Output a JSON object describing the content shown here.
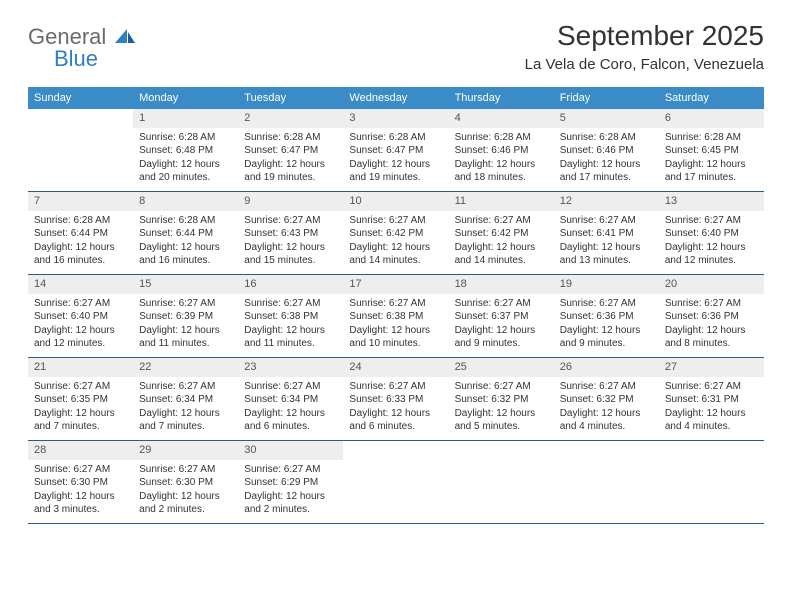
{
  "brand": {
    "word1": "General",
    "word2": "Blue"
  },
  "title": "September 2025",
  "subtitle": "La Vela de Coro, Falcon, Venezuela",
  "colors": {
    "header_bg": "#3b8bc8",
    "row_border": "#2a5b8a",
    "daynum_bg": "#eeeeee",
    "logo_gray": "#6b6b6b",
    "logo_blue": "#2f7fc2"
  },
  "weekdays": [
    "Sunday",
    "Monday",
    "Tuesday",
    "Wednesday",
    "Thursday",
    "Friday",
    "Saturday"
  ],
  "labels": {
    "sunrise": "Sunrise:",
    "sunset": "Sunset:",
    "daylight": "Daylight:"
  },
  "weeks": [
    [
      null,
      {
        "n": "1",
        "sr": "6:28 AM",
        "ss": "6:48 PM",
        "dl": "12 hours and 20 minutes."
      },
      {
        "n": "2",
        "sr": "6:28 AM",
        "ss": "6:47 PM",
        "dl": "12 hours and 19 minutes."
      },
      {
        "n": "3",
        "sr": "6:28 AM",
        "ss": "6:47 PM",
        "dl": "12 hours and 19 minutes."
      },
      {
        "n": "4",
        "sr": "6:28 AM",
        "ss": "6:46 PM",
        "dl": "12 hours and 18 minutes."
      },
      {
        "n": "5",
        "sr": "6:28 AM",
        "ss": "6:46 PM",
        "dl": "12 hours and 17 minutes."
      },
      {
        "n": "6",
        "sr": "6:28 AM",
        "ss": "6:45 PM",
        "dl": "12 hours and 17 minutes."
      }
    ],
    [
      {
        "n": "7",
        "sr": "6:28 AM",
        "ss": "6:44 PM",
        "dl": "12 hours and 16 minutes."
      },
      {
        "n": "8",
        "sr": "6:28 AM",
        "ss": "6:44 PM",
        "dl": "12 hours and 16 minutes."
      },
      {
        "n": "9",
        "sr": "6:27 AM",
        "ss": "6:43 PM",
        "dl": "12 hours and 15 minutes."
      },
      {
        "n": "10",
        "sr": "6:27 AM",
        "ss": "6:42 PM",
        "dl": "12 hours and 14 minutes."
      },
      {
        "n": "11",
        "sr": "6:27 AM",
        "ss": "6:42 PM",
        "dl": "12 hours and 14 minutes."
      },
      {
        "n": "12",
        "sr": "6:27 AM",
        "ss": "6:41 PM",
        "dl": "12 hours and 13 minutes."
      },
      {
        "n": "13",
        "sr": "6:27 AM",
        "ss": "6:40 PM",
        "dl": "12 hours and 12 minutes."
      }
    ],
    [
      {
        "n": "14",
        "sr": "6:27 AM",
        "ss": "6:40 PM",
        "dl": "12 hours and 12 minutes."
      },
      {
        "n": "15",
        "sr": "6:27 AM",
        "ss": "6:39 PM",
        "dl": "12 hours and 11 minutes."
      },
      {
        "n": "16",
        "sr": "6:27 AM",
        "ss": "6:38 PM",
        "dl": "12 hours and 11 minutes."
      },
      {
        "n": "17",
        "sr": "6:27 AM",
        "ss": "6:38 PM",
        "dl": "12 hours and 10 minutes."
      },
      {
        "n": "18",
        "sr": "6:27 AM",
        "ss": "6:37 PM",
        "dl": "12 hours and 9 minutes."
      },
      {
        "n": "19",
        "sr": "6:27 AM",
        "ss": "6:36 PM",
        "dl": "12 hours and 9 minutes."
      },
      {
        "n": "20",
        "sr": "6:27 AM",
        "ss": "6:36 PM",
        "dl": "12 hours and 8 minutes."
      }
    ],
    [
      {
        "n": "21",
        "sr": "6:27 AM",
        "ss": "6:35 PM",
        "dl": "12 hours and 7 minutes."
      },
      {
        "n": "22",
        "sr": "6:27 AM",
        "ss": "6:34 PM",
        "dl": "12 hours and 7 minutes."
      },
      {
        "n": "23",
        "sr": "6:27 AM",
        "ss": "6:34 PM",
        "dl": "12 hours and 6 minutes."
      },
      {
        "n": "24",
        "sr": "6:27 AM",
        "ss": "6:33 PM",
        "dl": "12 hours and 6 minutes."
      },
      {
        "n": "25",
        "sr": "6:27 AM",
        "ss": "6:32 PM",
        "dl": "12 hours and 5 minutes."
      },
      {
        "n": "26",
        "sr": "6:27 AM",
        "ss": "6:32 PM",
        "dl": "12 hours and 4 minutes."
      },
      {
        "n": "27",
        "sr": "6:27 AM",
        "ss": "6:31 PM",
        "dl": "12 hours and 4 minutes."
      }
    ],
    [
      {
        "n": "28",
        "sr": "6:27 AM",
        "ss": "6:30 PM",
        "dl": "12 hours and 3 minutes."
      },
      {
        "n": "29",
        "sr": "6:27 AM",
        "ss": "6:30 PM",
        "dl": "12 hours and 2 minutes."
      },
      {
        "n": "30",
        "sr": "6:27 AM",
        "ss": "6:29 PM",
        "dl": "12 hours and 2 minutes."
      },
      null,
      null,
      null,
      null
    ]
  ]
}
